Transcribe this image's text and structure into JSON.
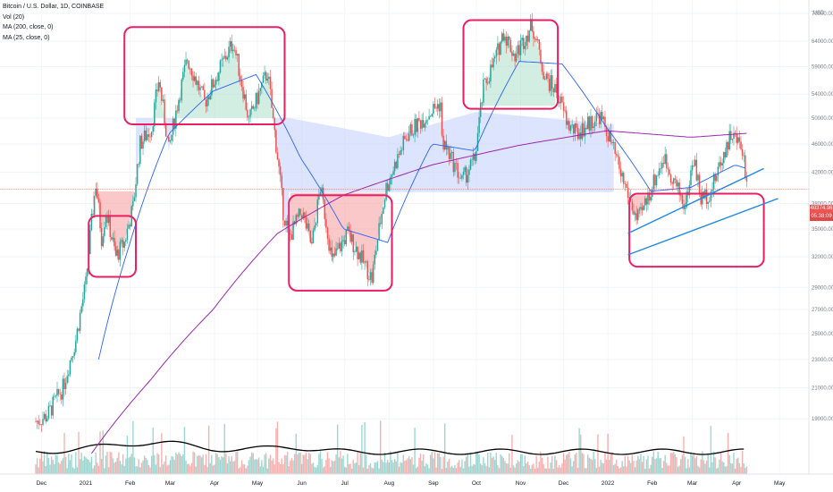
{
  "legend": {
    "symbol": "Bitcoin / U.S. Dollar, 1D, COINBASE",
    "volume": "Vol (20)",
    "ma200": "MA (200, close, 0)",
    "ma25": "MA (25, close, 0)"
  },
  "currency": "USD",
  "last_price": "40374.96",
  "countdown": "05:38:09",
  "colors": {
    "up": "#26a69a",
    "down": "#ef5350",
    "ma200": "#9c27b0",
    "ma25": "#2962ff",
    "annotation": "#e91e63",
    "trendline": "#1e88e5",
    "volume_ma": "#000000"
  },
  "chart_data": {
    "type": "candlestick",
    "title": "Bitcoin / U.S. Dollar, 1D, COINBASE",
    "xlabel": "",
    "ylabel": "",
    "ylim": [
      16800,
      70000
    ],
    "y_scale": "log",
    "x_ticks": [
      "Dec",
      "2021",
      "Feb",
      "Mar",
      "Apr",
      "May",
      "Jun",
      "Jul",
      "Aug",
      "Sep",
      "Oct",
      "Nov",
      "Dec",
      "2022",
      "Feb",
      "Mar",
      "Apr",
      "May"
    ],
    "y_ticks": [
      19000,
      21000,
      23000,
      25000,
      27000,
      29000,
      32000,
      35000,
      38000,
      42000,
      46000,
      50000,
      54000,
      59000,
      64000,
      70000
    ],
    "y_tick_labels": [
      "19000.00",
      "21000.00",
      "23000.00",
      "25000.00",
      "27000.00",
      "29000.00",
      "32000.00",
      "35000.00",
      "38000.00",
      "42000.00",
      "46000.00",
      "50000.00",
      "54000.00",
      "59000.00",
      "64000.00",
      "70000.00"
    ],
    "price_path": [
      [
        "2020-11-20",
        18500
      ],
      [
        "2020-12-05",
        19200
      ],
      [
        "2020-12-16",
        21000
      ],
      [
        "2020-12-25",
        24500
      ],
      [
        "2021-01-01",
        29300
      ],
      [
        "2021-01-08",
        40500
      ],
      [
        "2021-01-12",
        34000
      ],
      [
        "2021-01-15",
        37000
      ],
      [
        "2021-01-22",
        32000
      ],
      [
        "2021-01-28",
        33500
      ],
      [
        "2021-02-03",
        37500
      ],
      [
        "2021-02-08",
        46000
      ],
      [
        "2021-02-16",
        48500
      ],
      [
        "2021-02-21",
        56500
      ],
      [
        "2021-02-28",
        45000
      ],
      [
        "2021-03-13",
        60500
      ],
      [
        "2021-03-25",
        52500
      ],
      [
        "2021-04-14",
        63800
      ],
      [
        "2021-04-25",
        49500
      ],
      [
        "2021-05-08",
        58000
      ],
      [
        "2021-05-12",
        49500
      ],
      [
        "2021-05-19",
        37000
      ],
      [
        "2021-05-23",
        34000
      ],
      [
        "2021-06-01",
        37000
      ],
      [
        "2021-06-08",
        33000
      ],
      [
        "2021-06-14",
        40000
      ],
      [
        "2021-06-22",
        31500
      ],
      [
        "2021-07-03",
        34500
      ],
      [
        "2021-07-20",
        29800
      ],
      [
        "2021-07-30",
        40000
      ],
      [
        "2021-08-14",
        47500
      ],
      [
        "2021-08-23",
        49500
      ],
      [
        "2021-09-06",
        52500
      ],
      [
        "2021-09-07",
        46500
      ],
      [
        "2021-09-21",
        40800
      ],
      [
        "2021-09-30",
        43800
      ],
      [
        "2021-10-06",
        55000
      ],
      [
        "2021-10-15",
        61000
      ],
      [
        "2021-10-20",
        66000
      ],
      [
        "2021-10-28",
        61000
      ],
      [
        "2021-11-09",
        67500
      ],
      [
        "2021-11-18",
        57000
      ],
      [
        "2021-11-26",
        54500
      ],
      [
        "2021-12-04",
        49000
      ],
      [
        "2021-12-10",
        47500
      ],
      [
        "2021-12-26",
        50500
      ],
      [
        "2022-01-01",
        47500
      ],
      [
        "2022-01-10",
        41800
      ],
      [
        "2022-01-21",
        36000
      ],
      [
        "2022-01-24",
        36500
      ],
      [
        "2022-02-09",
        44000
      ],
      [
        "2022-02-24",
        37500
      ],
      [
        "2022-03-02",
        44000
      ],
      [
        "2022-03-07",
        38500
      ],
      [
        "2022-03-14",
        39500
      ],
      [
        "2022-03-28",
        47500
      ],
      [
        "2022-04-05",
        45500
      ],
      [
        "2022-04-08",
        40374.96
      ]
    ],
    "series": [
      {
        "name": "MA (200, close, 0)",
        "values": [
          [
            "2021-01-05",
            17000
          ],
          [
            "2021-02-15",
            21500
          ],
          [
            "2021-03-31",
            27000
          ],
          [
            "2021-05-15",
            34500
          ],
          [
            "2021-06-30",
            39000
          ],
          [
            "2021-08-31",
            43000
          ],
          [
            "2021-10-31",
            45800
          ],
          [
            "2021-12-31",
            48000
          ],
          [
            "2022-02-28",
            47000
          ],
          [
            "2022-04-08",
            47600
          ]
        ]
      },
      {
        "name": "MA (25, close, 0)",
        "values": [
          [
            "2021-01-10",
            23000
          ],
          [
            "2021-01-31",
            33000
          ],
          [
            "2021-02-28",
            47500
          ],
          [
            "2021-03-31",
            54500
          ],
          [
            "2021-04-30",
            57500
          ],
          [
            "2021-05-31",
            44000
          ],
          [
            "2021-06-30",
            35000
          ],
          [
            "2021-07-31",
            33500
          ],
          [
            "2021-08-31",
            46000
          ],
          [
            "2021-09-30",
            45000
          ],
          [
            "2021-10-31",
            60000
          ],
          [
            "2021-11-30",
            59500
          ],
          [
            "2021-12-31",
            48500
          ],
          [
            "2022-01-31",
            39500
          ],
          [
            "2022-02-28",
            40000
          ],
          [
            "2022-03-31",
            43000
          ],
          [
            "2022-04-08",
            42500
          ]
        ]
      }
    ],
    "annotations": {
      "rectangles": [
        {
          "x": [
            "2021-01-03",
            "2021-02-05"
          ],
          "y": [
            36500,
            30000
          ]
        },
        {
          "x": [
            "2021-01-28",
            "2021-05-20"
          ],
          "y": [
            67000,
            49000
          ]
        },
        {
          "x": [
            "2021-05-23",
            "2021-08-03"
          ],
          "y": [
            39000,
            28700
          ]
        },
        {
          "x": [
            "2021-09-22",
            "2021-11-27"
          ],
          "y": [
            68500,
            51500
          ]
        },
        {
          "x": [
            "2022-01-16",
            "2022-04-20"
          ],
          "y": [
            39200,
            31000
          ]
        }
      ],
      "trend_lines": [
        {
          "from": [
            "2022-01-15",
            34500
          ],
          "to": [
            "2022-04-20",
            42500
          ]
        },
        {
          "from": [
            "2022-01-15",
            32200
          ],
          "to": [
            "2022-04-30",
            38600
          ]
        }
      ],
      "horizontal_line": 39800
    }
  }
}
